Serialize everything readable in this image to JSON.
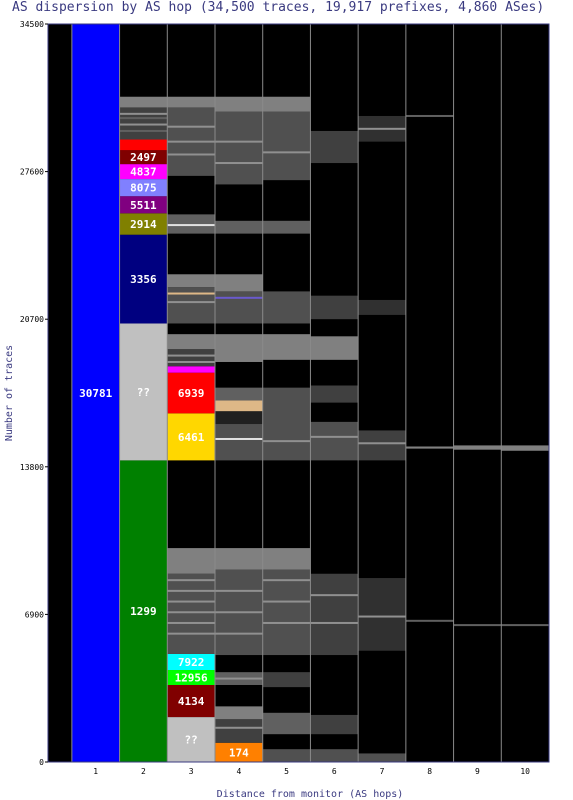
{
  "chart_data": {
    "type": "bar",
    "title": "AS dispersion by AS hop (34,500 traces, 19,917 prefixes, 4,860 ASes)",
    "xlabel": "Distance from monitor (AS hops)",
    "ylabel": "Number of traces",
    "ylim": [
      0,
      34500
    ],
    "y_ticks": [
      "0",
      "6900",
      "13800",
      "20700",
      "27600",
      "34500"
    ],
    "y_tick_values": [
      0,
      6900,
      13800,
      20700,
      27600,
      34500
    ],
    "categories": [
      "1",
      "2",
      "3",
      "4",
      "5",
      "6",
      "7",
      "8",
      "9",
      "10"
    ],
    "grid": "vertical",
    "background_color": "#000000",
    "segments": [
      {
        "hop": 1,
        "y0": 0,
        "y1": 34500,
        "color": "#0000ff",
        "label": "30781"
      },
      {
        "hop": 2,
        "y0": 0,
        "y1": 14100,
        "color": "#008000",
        "label": "1299"
      },
      {
        "hop": 2,
        "y0": 14100,
        "y1": 20500,
        "color": "#c0c0c0",
        "label": "??"
      },
      {
        "hop": 2,
        "y0": 20500,
        "y1": 24650,
        "color": "#000080",
        "label": "3356"
      },
      {
        "hop": 2,
        "y0": 24650,
        "y1": 25650,
        "color": "#808000",
        "label": "2914"
      },
      {
        "hop": 2,
        "y0": 25650,
        "y1": 26450,
        "color": "#800080",
        "label": "5511"
      },
      {
        "hop": 2,
        "y0": 26450,
        "y1": 27250,
        "color": "#8080ff",
        "label": "8075"
      },
      {
        "hop": 2,
        "y0": 27250,
        "y1": 27950,
        "color": "#ff00ff",
        "label": "4837"
      },
      {
        "hop": 2,
        "y0": 27950,
        "y1": 28600,
        "color": "#800000",
        "label": "2497"
      },
      {
        "hop": 2,
        "y0": 28600,
        "y1": 29100,
        "color": "#ff0000",
        "label": ""
      },
      {
        "hop": 2,
        "y0": 29100,
        "y1": 30600,
        "color": "#404040",
        "label": ""
      },
      {
        "hop": 2,
        "y0": 30600,
        "y1": 31100,
        "color": "#808080",
        "label": ""
      },
      {
        "hop": 3,
        "y0": 0,
        "y1": 2100,
        "color": "#c0c0c0",
        "label": "??"
      },
      {
        "hop": 3,
        "y0": 2100,
        "y1": 3600,
        "color": "#800000",
        "label": "4134"
      },
      {
        "hop": 3,
        "y0": 3600,
        "y1": 4300,
        "color": "#00ff00",
        "label": "12956"
      },
      {
        "hop": 3,
        "y0": 4300,
        "y1": 5050,
        "color": "#00ffff",
        "label": "7922"
      },
      {
        "hop": 3,
        "y0": 5050,
        "y1": 8800,
        "color": "#505050",
        "label": ""
      },
      {
        "hop": 3,
        "y0": 8800,
        "y1": 10000,
        "color": "#808080",
        "label": ""
      },
      {
        "hop": 3,
        "y0": 14100,
        "y1": 16300,
        "color": "#ffd700",
        "label": "6461"
      },
      {
        "hop": 3,
        "y0": 16300,
        "y1": 18200,
        "color": "#ff0000",
        "label": "6939"
      },
      {
        "hop": 3,
        "y0": 18200,
        "y1": 18500,
        "color": "#ff00ff",
        "label": ""
      },
      {
        "hop": 3,
        "y0": 18500,
        "y1": 19300,
        "color": "#404040",
        "label": ""
      },
      {
        "hop": 3,
        "y0": 19300,
        "y1": 20000,
        "color": "#808080",
        "label": ""
      },
      {
        "hop": 3,
        "y0": 20500,
        "y1": 22200,
        "color": "#505050",
        "label": ""
      },
      {
        "hop": 3,
        "y0": 22200,
        "y1": 22800,
        "color": "#808080",
        "label": ""
      },
      {
        "hop": 3,
        "y0": 24700,
        "y1": 25600,
        "color": "#606060",
        "label": ""
      },
      {
        "hop": 3,
        "y0": 27400,
        "y1": 30600,
        "color": "#505050",
        "label": ""
      },
      {
        "hop": 3,
        "y0": 30600,
        "y1": 31100,
        "color": "#808080",
        "label": ""
      },
      {
        "hop": 4,
        "y0": 0,
        "y1": 900,
        "color": "#ff8000",
        "label": "174"
      },
      {
        "hop": 4,
        "y0": 900,
        "y1": 2000,
        "color": "#404040",
        "label": ""
      },
      {
        "hop": 4,
        "y0": 2000,
        "y1": 2600,
        "color": "#808080",
        "label": ""
      },
      {
        "hop": 4,
        "y0": 3600,
        "y1": 4200,
        "color": "#606060",
        "label": ""
      },
      {
        "hop": 4,
        "y0": 5000,
        "y1": 9000,
        "color": "#505050",
        "label": ""
      },
      {
        "hop": 4,
        "y0": 9000,
        "y1": 10000,
        "color": "#808080",
        "label": ""
      },
      {
        "hop": 4,
        "y0": 14100,
        "y1": 15800,
        "color": "#505050",
        "label": ""
      },
      {
        "hop": 4,
        "y0": 15800,
        "y1": 16400,
        "color": "#202020",
        "label": ""
      },
      {
        "hop": 4,
        "y0": 16400,
        "y1": 16900,
        "color": "#deb887",
        "label": ""
      },
      {
        "hop": 4,
        "y0": 16900,
        "y1": 17500,
        "color": "#606060",
        "label": ""
      },
      {
        "hop": 4,
        "y0": 18700,
        "y1": 20000,
        "color": "#808080",
        "label": ""
      },
      {
        "hop": 4,
        "y0": 20500,
        "y1": 22000,
        "color": "#505050",
        "label": ""
      },
      {
        "hop": 4,
        "y0": 22000,
        "y1": 22800,
        "color": "#808080",
        "label": ""
      },
      {
        "hop": 4,
        "y0": 24700,
        "y1": 25300,
        "color": "#606060",
        "label": ""
      },
      {
        "hop": 4,
        "y0": 27000,
        "y1": 30400,
        "color": "#505050",
        "label": ""
      },
      {
        "hop": 4,
        "y0": 30400,
        "y1": 31100,
        "color": "#808080",
        "label": ""
      },
      {
        "hop": 5,
        "y0": 0,
        "y1": 600,
        "color": "#505050",
        "label": ""
      },
      {
        "hop": 5,
        "y0": 1300,
        "y1": 2300,
        "color": "#606060",
        "label": ""
      },
      {
        "hop": 5,
        "y0": 3500,
        "y1": 4200,
        "color": "#404040",
        "label": ""
      },
      {
        "hop": 5,
        "y0": 5000,
        "y1": 9000,
        "color": "#505050",
        "label": ""
      },
      {
        "hop": 5,
        "y0": 9000,
        "y1": 10000,
        "color": "#808080",
        "label": ""
      },
      {
        "hop": 5,
        "y0": 14100,
        "y1": 17500,
        "color": "#505050",
        "label": ""
      },
      {
        "hop": 5,
        "y0": 18800,
        "y1": 20000,
        "color": "#808080",
        "label": ""
      },
      {
        "hop": 5,
        "y0": 20500,
        "y1": 22000,
        "color": "#505050",
        "label": ""
      },
      {
        "hop": 5,
        "y0": 24700,
        "y1": 25300,
        "color": "#606060",
        "label": ""
      },
      {
        "hop": 5,
        "y0": 27200,
        "y1": 30400,
        "color": "#505050",
        "label": ""
      },
      {
        "hop": 5,
        "y0": 30400,
        "y1": 31100,
        "color": "#808080",
        "label": ""
      },
      {
        "hop": 6,
        "y0": 0,
        "y1": 600,
        "color": "#505050",
        "label": ""
      },
      {
        "hop": 6,
        "y0": 1300,
        "y1": 2200,
        "color": "#404040",
        "label": ""
      },
      {
        "hop": 6,
        "y0": 5000,
        "y1": 8800,
        "color": "#404040",
        "label": ""
      },
      {
        "hop": 6,
        "y0": 14100,
        "y1": 15900,
        "color": "#505050",
        "label": ""
      },
      {
        "hop": 6,
        "y0": 16800,
        "y1": 17600,
        "color": "#404040",
        "label": ""
      },
      {
        "hop": 6,
        "y0": 18800,
        "y1": 19900,
        "color": "#808080",
        "label": ""
      },
      {
        "hop": 6,
        "y0": 20700,
        "y1": 21800,
        "color": "#404040",
        "label": ""
      },
      {
        "hop": 6,
        "y0": 28000,
        "y1": 29500,
        "color": "#404040",
        "label": ""
      },
      {
        "hop": 7,
        "y0": 0,
        "y1": 400,
        "color": "#505050",
        "label": ""
      },
      {
        "hop": 7,
        "y0": 5200,
        "y1": 8600,
        "color": "#303030",
        "label": ""
      },
      {
        "hop": 7,
        "y0": 14100,
        "y1": 15500,
        "color": "#404040",
        "label": ""
      },
      {
        "hop": 7,
        "y0": 20900,
        "y1": 21600,
        "color": "#303030",
        "label": ""
      },
      {
        "hop": 7,
        "y0": 29000,
        "y1": 30200,
        "color": "#303030",
        "label": ""
      },
      {
        "hop": 8,
        "y0": 14650,
        "y1": 14750,
        "color": "#808080",
        "label": ""
      },
      {
        "hop": 9,
        "y0": 14600,
        "y1": 14800,
        "color": "#808080",
        "label": ""
      },
      {
        "hop": 10,
        "y0": 14550,
        "y1": 14800,
        "color": "#808080",
        "label": ""
      }
    ],
    "stripes": [
      {
        "hop": 2,
        "y": 29500,
        "color": "#606060"
      },
      {
        "hop": 2,
        "y": 29800,
        "color": "#909090"
      },
      {
        "hop": 2,
        "y": 30100,
        "color": "#606060"
      },
      {
        "hop": 2,
        "y": 30300,
        "color": "#909090"
      },
      {
        "hop": 3,
        "y": 6000,
        "color": "#909090"
      },
      {
        "hop": 3,
        "y": 6500,
        "color": "#909090"
      },
      {
        "hop": 3,
        "y": 7000,
        "color": "#909090"
      },
      {
        "hop": 3,
        "y": 7500,
        "color": "#909090"
      },
      {
        "hop": 3,
        "y": 8000,
        "color": "#909090"
      },
      {
        "hop": 3,
        "y": 8500,
        "color": "#909090"
      },
      {
        "hop": 3,
        "y": 18700,
        "color": "#909090"
      },
      {
        "hop": 3,
        "y": 19000,
        "color": "#909090"
      },
      {
        "hop": 3,
        "y": 21500,
        "color": "#909090"
      },
      {
        "hop": 3,
        "y": 21900,
        "color": "#deb887"
      },
      {
        "hop": 3,
        "y": 25100,
        "color": "#e0e0e0"
      },
      {
        "hop": 3,
        "y": 28400,
        "color": "#909090"
      },
      {
        "hop": 3,
        "y": 29000,
        "color": "#909090"
      },
      {
        "hop": 3,
        "y": 29700,
        "color": "#909090"
      },
      {
        "hop": 4,
        "y": 1600,
        "color": "#909090"
      },
      {
        "hop": 4,
        "y": 3900,
        "color": "#909090"
      },
      {
        "hop": 4,
        "y": 6000,
        "color": "#909090"
      },
      {
        "hop": 4,
        "y": 7000,
        "color": "#909090"
      },
      {
        "hop": 4,
        "y": 8000,
        "color": "#909090"
      },
      {
        "hop": 4,
        "y": 15100,
        "color": "#e0e0e0"
      },
      {
        "hop": 4,
        "y": 21700,
        "color": "#6a5acd"
      },
      {
        "hop": 4,
        "y": 28000,
        "color": "#909090"
      },
      {
        "hop": 4,
        "y": 29000,
        "color": "#909090"
      },
      {
        "hop": 5,
        "y": 6500,
        "color": "#909090"
      },
      {
        "hop": 5,
        "y": 7500,
        "color": "#909090"
      },
      {
        "hop": 5,
        "y": 8500,
        "color": "#909090"
      },
      {
        "hop": 5,
        "y": 15000,
        "color": "#909090"
      },
      {
        "hop": 5,
        "y": 28500,
        "color": "#909090"
      },
      {
        "hop": 6,
        "y": 6500,
        "color": "#909090"
      },
      {
        "hop": 6,
        "y": 7800,
        "color": "#909090"
      },
      {
        "hop": 6,
        "y": 15200,
        "color": "#909090"
      },
      {
        "hop": 7,
        "y": 6800,
        "color": "#909090"
      },
      {
        "hop": 7,
        "y": 14900,
        "color": "#909090"
      },
      {
        "hop": 7,
        "y": 29600,
        "color": "#909090"
      },
      {
        "hop": 8,
        "y": 6600,
        "color": "#606060"
      },
      {
        "hop": 8,
        "y": 30200,
        "color": "#606060"
      },
      {
        "hop": 9,
        "y": 6400,
        "color": "#606060"
      },
      {
        "hop": 10,
        "y": 6400,
        "color": "#606060"
      }
    ]
  }
}
